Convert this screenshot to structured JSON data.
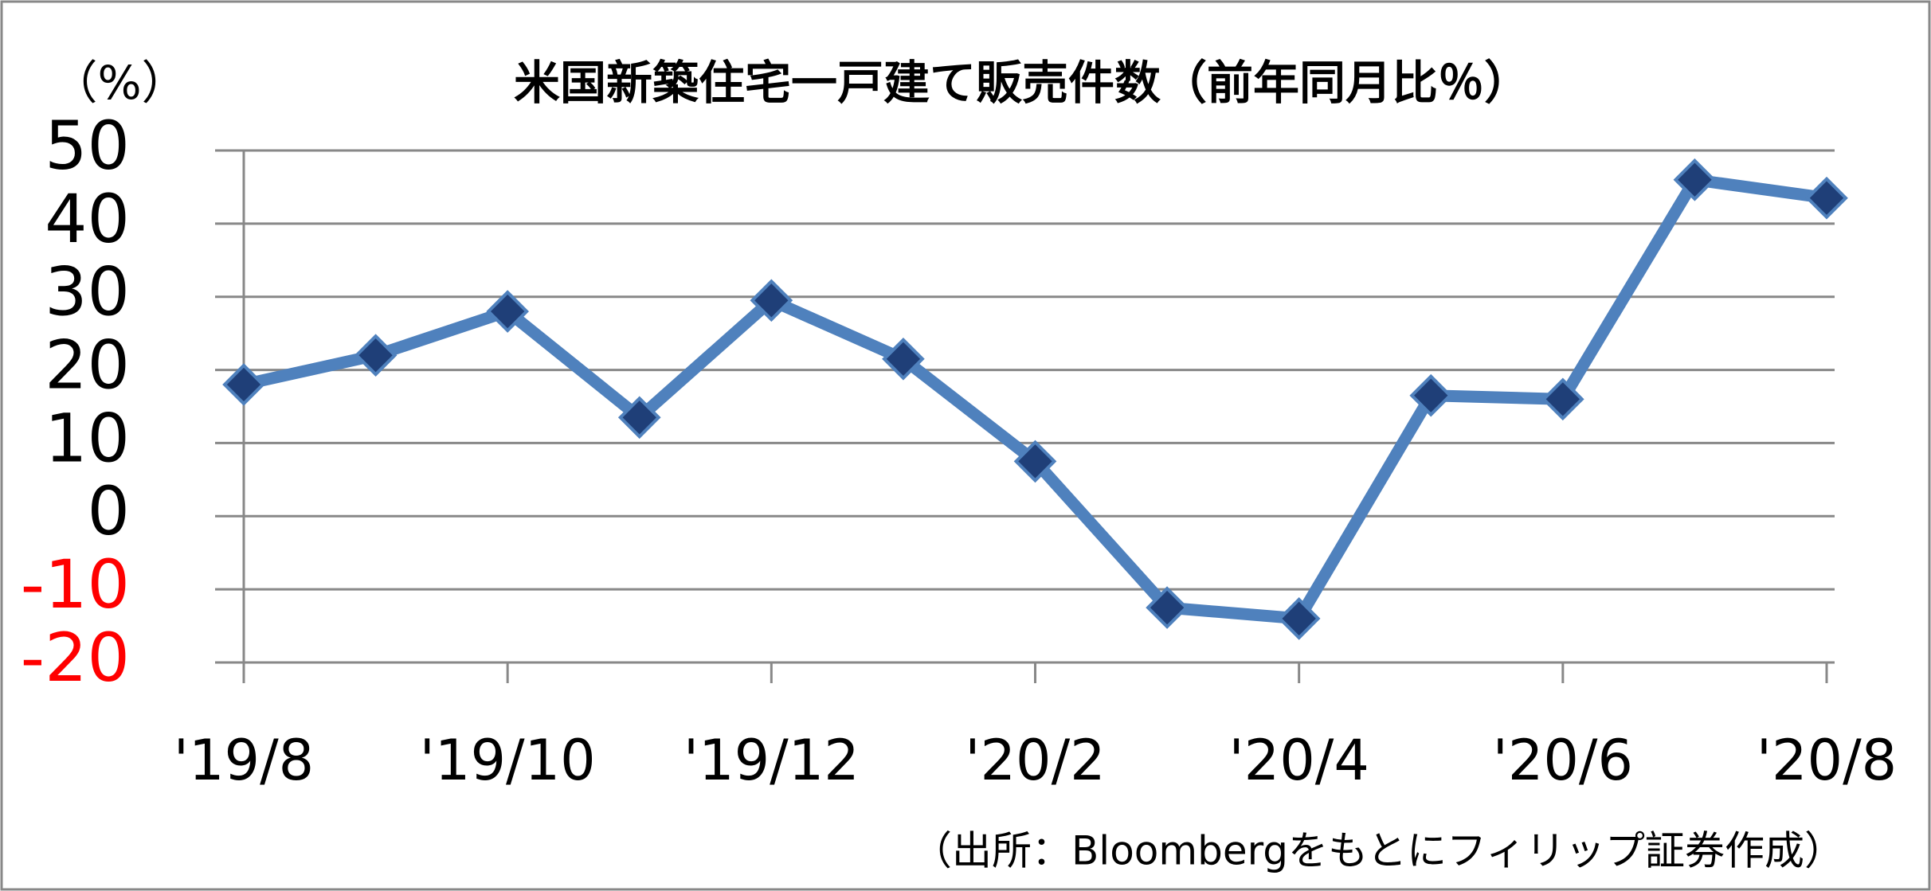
{
  "chart_data": {
    "type": "line",
    "title": "米国新築住宅一戸建て販売件数（前年同月比％）",
    "y_label": "（%）",
    "source": "（出所：Bloombergをもとにフィリップ証券作成）",
    "categories": [
      "'19/8",
      null,
      "'19/10",
      null,
      "'19/12",
      null,
      "'20/2",
      null,
      "'20/4",
      null,
      "'20/6",
      null,
      "'20/8"
    ],
    "values": [
      18,
      22,
      28,
      13.5,
      29.5,
      21.5,
      7.5,
      -12.5,
      -14,
      16.5,
      16,
      46,
      43.5
    ],
    "color": "#4f81bd",
    "marker_color": "#1f3f78",
    "negative_tick_color": "#ff0000",
    "ylim": [
      -20,
      50
    ],
    "yticks": [
      -20,
      -10,
      0,
      10,
      20,
      30,
      40,
      50
    ],
    "grid": true
  }
}
